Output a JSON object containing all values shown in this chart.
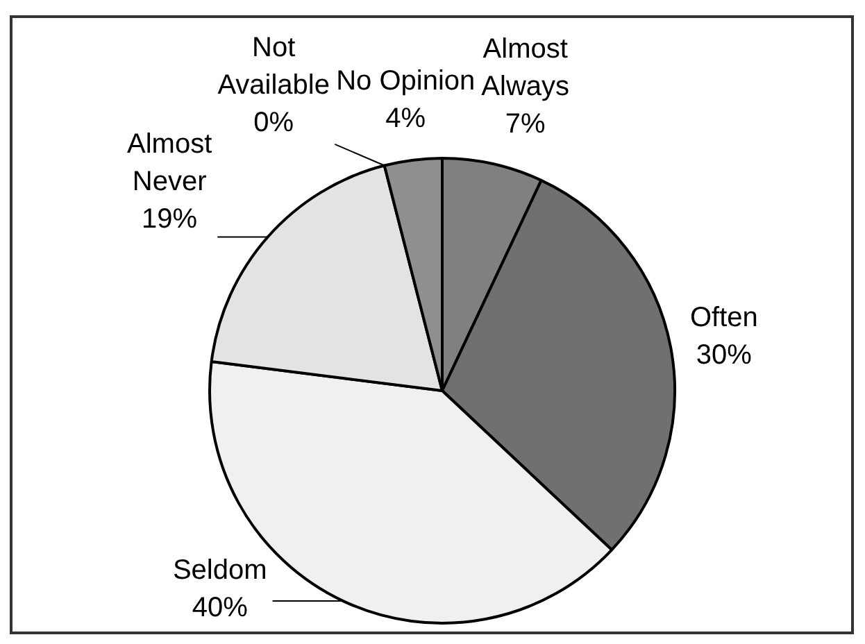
{
  "chart_data": {
    "type": "pie",
    "categories": [
      "Almost Always",
      "Often",
      "Seldom",
      "Almost Never",
      "Not Available",
      "No Opinion"
    ],
    "values": [
      7,
      30,
      40,
      19,
      0,
      4
    ],
    "colors": [
      "#808080",
      "#707070",
      "#f0f0f0",
      "#e3e3e3",
      "#b0b0b0",
      "#8f8f8f"
    ],
    "value_labels": [
      "7%",
      "30%",
      "40%",
      "19%",
      "0%",
      "4%"
    ]
  }
}
